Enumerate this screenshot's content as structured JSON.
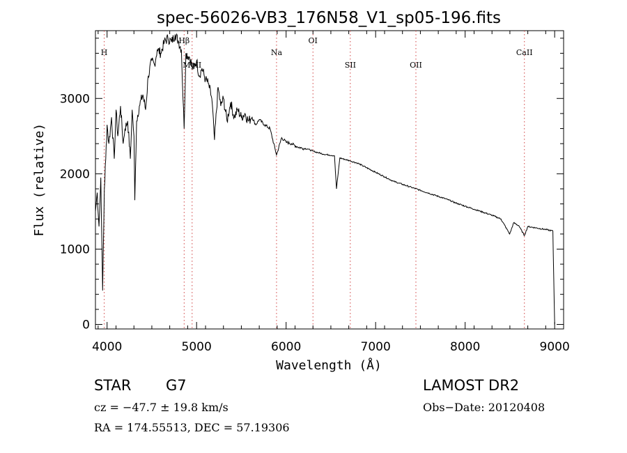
{
  "chart_data": {
    "type": "line",
    "title": "spec-56026-VB3_176N58_V1_sp05-196.fits",
    "xlabel": "Wavelength (Å)",
    "ylabel": "Flux (relative)",
    "xlim": [
      3870,
      9100
    ],
    "ylim": [
      -60,
      3900
    ],
    "x_ticks": [
      4000,
      5000,
      6000,
      7000,
      8000,
      9000
    ],
    "y_ticks": [
      0,
      1000,
      2000,
      3000
    ],
    "grid": false,
    "series": [
      {
        "x": [
          3870,
          3890,
          3910,
          3930,
          3950,
          3970,
          3985,
          4000,
          4020,
          4050,
          4080,
          4100,
          4120,
          4150,
          4180,
          4200,
          4230,
          4260,
          4280,
          4300,
          4310,
          4330,
          4360,
          4400,
          4430,
          4460,
          4500,
          4530,
          4560,
          4600,
          4640,
          4680,
          4720,
          4760,
          4800,
          4830,
          4861,
          4880,
          4920,
          4960,
          5000,
          5030,
          5060,
          5100,
          5130,
          5170,
          5200,
          5240,
          5270,
          5300,
          5340,
          5380,
          5420,
          5460,
          5500,
          5540,
          5580,
          5620,
          5660,
          5700,
          5760,
          5820,
          5893,
          5950,
          6000,
          6060,
          6120,
          6180,
          6240,
          6300,
          6360,
          6420,
          6480,
          6540,
          6563,
          6600,
          6660,
          6720,
          6800,
          6900,
          7000,
          7100,
          7200,
          7300,
          7400,
          7500,
          7600,
          7700,
          7800,
          7900,
          8000,
          8100,
          8200,
          8300,
          8400,
          8498,
          8542,
          8600,
          8662,
          8700,
          8800,
          8900,
          8980,
          8990,
          9000
        ],
        "y": [
          1500,
          1750,
          1300,
          1950,
          450,
          1800,
          2200,
          2650,
          2400,
          2750,
          2200,
          2850,
          2500,
          2900,
          2400,
          2600,
          2700,
          2200,
          2850,
          2500,
          1650,
          2700,
          2900,
          3050,
          2850,
          3300,
          3500,
          3450,
          3650,
          3600,
          3750,
          3800,
          3750,
          3850,
          3750,
          3650,
          2600,
          3600,
          3550,
          3400,
          3500,
          3300,
          3400,
          3250,
          3200,
          3000,
          2450,
          3150,
          2900,
          3000,
          2700,
          2950,
          2750,
          2850,
          2750,
          2800,
          2700,
          2750,
          2650,
          2720,
          2650,
          2600,
          2250,
          2480,
          2420,
          2400,
          2360,
          2340,
          2330,
          2300,
          2280,
          2260,
          2250,
          2240,
          1800,
          2210,
          2190,
          2170,
          2140,
          2080,
          2020,
          1960,
          1900,
          1860,
          1820,
          1780,
          1740,
          1700,
          1660,
          1610,
          1570,
          1530,
          1490,
          1450,
          1400,
          1200,
          1350,
          1310,
          1180,
          1300,
          1280,
          1260,
          1240,
          600,
          0
        ]
      }
    ],
    "spectral_lines": [
      {
        "label": "H",
        "x": 3968,
        "row": 1
      },
      {
        "label": "Hβ",
        "x": 4861,
        "row": 0
      },
      {
        "label": "MgII",
        "x": 4950,
        "row": 2
      },
      {
        "label": "Na",
        "x": 5893,
        "row": 1
      },
      {
        "label": "OI",
        "x": 6300,
        "row": 0
      },
      {
        "label": "SII",
        "x": 6717,
        "row": 2
      },
      {
        "label": "OII",
        "x": 7450,
        "row": 2
      },
      {
        "label": "CaII",
        "x": 8662,
        "row": 1
      }
    ],
    "colors": {
      "spectrum": "#000000",
      "line_markers": "#d04040"
    }
  },
  "info": {
    "object_class": "STAR",
    "subclass": "G7",
    "survey": "LAMOST DR2",
    "redshift": "cz = −47.7 ± 19.8 km/s",
    "obs_date": "Obs−Date: 20120408",
    "coords": "RA = 174.55513, DEC =  57.19306"
  }
}
